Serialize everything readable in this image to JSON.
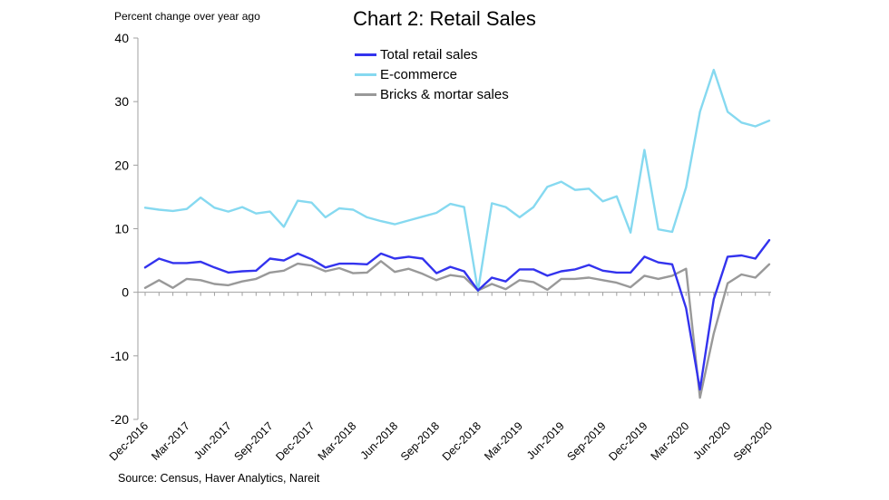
{
  "chart_data": {
    "type": "line",
    "title": "Chart 2: Retail Sales",
    "ylabel": "Percent change over year ago",
    "xlabel": "",
    "source": "Source: Census, Haver Analytics, Nareit",
    "ylim": [
      -20,
      40
    ],
    "yticks": [
      40,
      30,
      20,
      10,
      0,
      -10,
      -20
    ],
    "x": [
      "Dec-2016",
      "Jan-2017",
      "Feb-2017",
      "Mar-2017",
      "Apr-2017",
      "May-2017",
      "Jun-2017",
      "Jul-2017",
      "Aug-2017",
      "Sep-2017",
      "Oct-2017",
      "Nov-2017",
      "Dec-2017",
      "Jan-2018",
      "Feb-2018",
      "Mar-2018",
      "Apr-2018",
      "May-2018",
      "Jun-2018",
      "Jul-2018",
      "Aug-2018",
      "Sep-2018",
      "Oct-2018",
      "Nov-2018",
      "Dec-2018",
      "Jan-2019",
      "Feb-2019",
      "Mar-2019",
      "Apr-2019",
      "May-2019",
      "Jun-2019",
      "Jul-2019",
      "Aug-2019",
      "Sep-2019",
      "Oct-2019",
      "Nov-2019",
      "Dec-2019",
      "Jan-2020",
      "Feb-2020",
      "Mar-2020",
      "Apr-2020",
      "May-2020",
      "Jun-2020",
      "Jul-2020",
      "Aug-2020",
      "Sep-2020"
    ],
    "xtick_labels": [
      "Dec-2016",
      "Mar-2017",
      "Jun-2017",
      "Sep-2017",
      "Dec-2017",
      "Mar-2018",
      "Jun-2018",
      "Sep-2018",
      "Dec-2018",
      "Mar-2019",
      "Jun-2019",
      "Sep-2019",
      "Dec-2019",
      "Mar-2020",
      "Jun-2020",
      "Sep-2020"
    ],
    "legend_position": "top-center",
    "series": [
      {
        "name": "Total retail sales",
        "color": "#3333ee",
        "values": [
          3.9,
          5.3,
          4.6,
          4.6,
          4.8,
          3.9,
          3.1,
          3.3,
          3.4,
          5.3,
          5.0,
          6.1,
          5.2,
          3.9,
          4.5,
          4.5,
          4.4,
          6.1,
          5.3,
          5.6,
          5.3,
          3.0,
          4.0,
          3.3,
          0.3,
          2.3,
          1.7,
          3.6,
          3.6,
          2.6,
          3.3,
          3.6,
          4.3,
          3.4,
          3.1,
          3.1,
          5.6,
          4.7,
          4.4,
          -2.5,
          -15.3,
          -1.1,
          5.6,
          5.8,
          5.3,
          8.2
        ]
      },
      {
        "name": "E-commerce",
        "color": "#86d9f0",
        "values": [
          13.3,
          13.0,
          12.8,
          13.1,
          14.9,
          13.3,
          12.7,
          13.4,
          12.4,
          12.7,
          10.3,
          14.4,
          14.1,
          11.8,
          13.2,
          13.0,
          11.8,
          11.2,
          10.7,
          11.3,
          11.9,
          12.5,
          13.9,
          13.4,
          0.2,
          14.0,
          13.4,
          11.8,
          13.4,
          16.6,
          17.4,
          16.1,
          16.3,
          14.3,
          15.1,
          9.4,
          22.4,
          9.9,
          9.5,
          16.5,
          28.4,
          35.0,
          28.4,
          26.7,
          26.1,
          27.0
        ]
      },
      {
        "name": "Bricks & mortar sales",
        "color": "#999999",
        "values": [
          0.7,
          1.9,
          0.7,
          2.1,
          1.9,
          1.3,
          1.1,
          1.7,
          2.1,
          3.1,
          3.4,
          4.5,
          4.2,
          3.3,
          3.8,
          3.0,
          3.1,
          4.9,
          3.2,
          3.7,
          2.9,
          1.9,
          2.7,
          2.4,
          0.3,
          1.3,
          0.5,
          1.9,
          1.6,
          0.4,
          2.1,
          2.1,
          2.3,
          1.9,
          1.5,
          0.8,
          2.6,
          2.1,
          2.6,
          3.7,
          -16.6,
          -6.5,
          1.4,
          2.8,
          2.3,
          4.4
        ]
      }
    ]
  }
}
